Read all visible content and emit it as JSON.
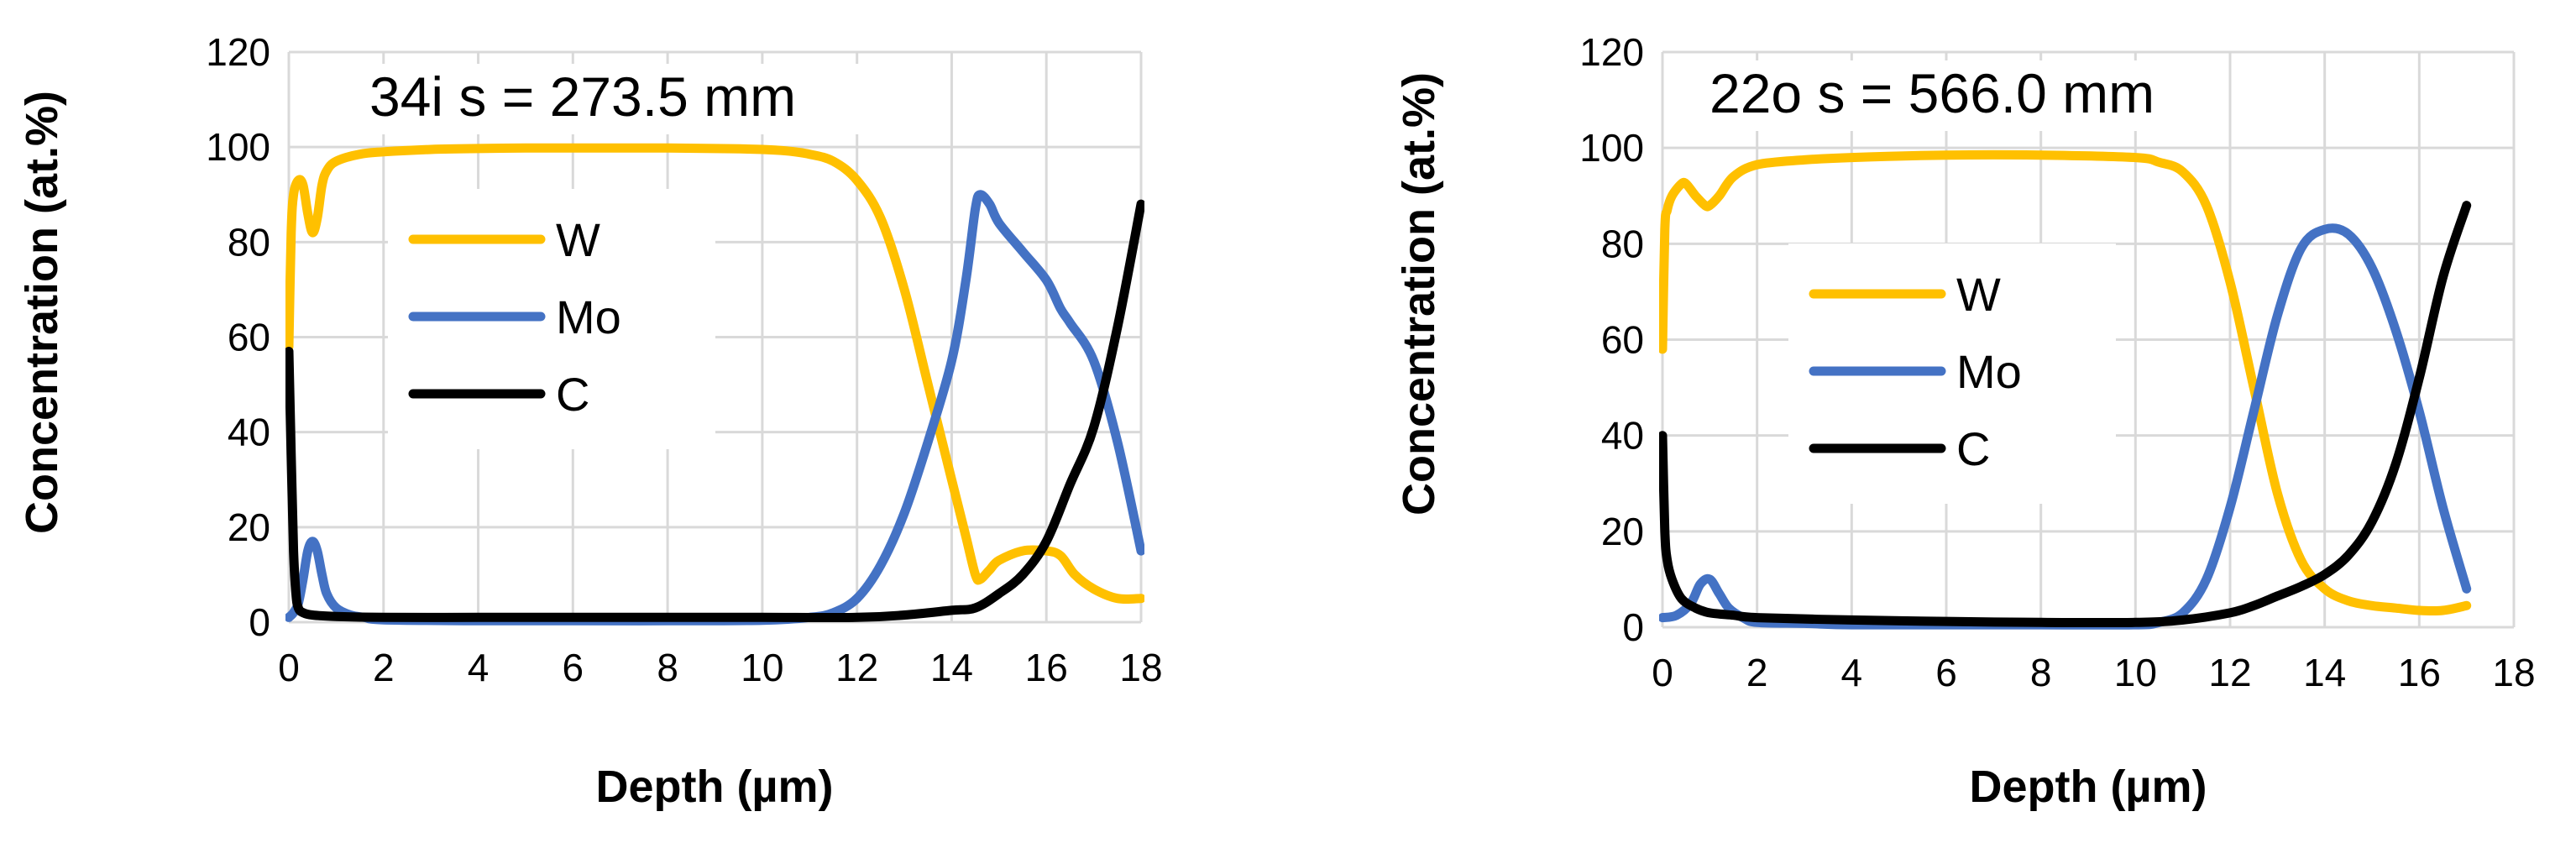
{
  "colors": {
    "W": "#FFC000",
    "Mo": "#4472C4",
    "C": "#000000",
    "grid": "#d9d9d9",
    "background": "#ffffff"
  },
  "chart_data": [
    {
      "type": "line",
      "title": "34i s = 273.5 mm",
      "xlabel": "Depth (µm)",
      "ylabel": "Concentration (at.%)",
      "xlim": [
        0,
        18
      ],
      "ylim": [
        0,
        120
      ],
      "xticks": [
        "0",
        "2",
        "4",
        "6",
        "8",
        "10",
        "12",
        "14",
        "16",
        "18"
      ],
      "yticks": [
        "0",
        "20",
        "40",
        "60",
        "80",
        "100",
        "120"
      ],
      "grid": true,
      "legend": "center-left",
      "series": [
        {
          "name": "W",
          "color": "#FFC000",
          "x": [
            0,
            0.05,
            0.1,
            0.2,
            0.3,
            0.4,
            0.5,
            0.6,
            0.7,
            0.8,
            1.0,
            1.5,
            2,
            3,
            4,
            5,
            6,
            7,
            8,
            9,
            10,
            10.5,
            11,
            11.5,
            12,
            12.5,
            13,
            13.5,
            14,
            14.3,
            14.5,
            14.6,
            14.8,
            15,
            15.5,
            16,
            16.3,
            16.6,
            17,
            17.5,
            18
          ],
          "y": [
            58,
            82,
            90,
            93,
            92,
            86,
            82,
            85,
            92,
            95,
            97,
            98.5,
            99,
            99.5,
            99.7,
            99.8,
            99.8,
            99.8,
            99.8,
            99.7,
            99.5,
            99.2,
            98.5,
            97,
            93,
            85,
            70,
            50,
            30,
            18,
            10,
            9,
            11,
            13,
            15,
            15,
            14,
            10,
            7,
            5,
            5
          ]
        },
        {
          "name": "Mo",
          "color": "#4472C4",
          "x": [
            0,
            0.1,
            0.2,
            0.3,
            0.4,
            0.5,
            0.6,
            0.7,
            0.8,
            1.0,
            1.3,
            1.6,
            2,
            4,
            6,
            8,
            10,
            11,
            11.5,
            12,
            12.5,
            13,
            13.5,
            14,
            14.3,
            14.5,
            14.6,
            14.8,
            15,
            15.5,
            16,
            16.3,
            16.5,
            17,
            17.5,
            18
          ],
          "y": [
            1,
            2,
            4,
            9,
            15,
            17,
            15,
            10,
            6,
            3,
            1.5,
            1,
            0.5,
            0.3,
            0.3,
            0.3,
            0.4,
            1,
            2,
            5,
            12,
            23,
            38,
            55,
            72,
            87,
            90,
            88,
            84,
            78,
            72,
            66,
            63,
            55,
            38,
            15
          ]
        },
        {
          "name": "C",
          "color": "#000000",
          "x": [
            0,
            0.05,
            0.1,
            0.15,
            0.2,
            0.3,
            0.5,
            1,
            2,
            4,
            6,
            8,
            10,
            12,
            13,
            14,
            14.5,
            15,
            15.5,
            16,
            16.5,
            17,
            17.5,
            18
          ],
          "y": [
            57,
            35,
            15,
            6,
            3,
            2,
            1.5,
            1.2,
            1,
            1,
            1,
            1,
            1,
            1,
            1.5,
            2.5,
            3,
            6,
            10,
            17,
            29,
            41,
            62,
            88
          ]
        }
      ]
    },
    {
      "type": "line",
      "title": "22o s = 566.0 mm",
      "xlabel": "Depth (µm)",
      "ylabel": "Concentration (at.%)",
      "xlim": [
        0,
        18
      ],
      "ylim": [
        0,
        120
      ],
      "xticks": [
        "0",
        "2",
        "4",
        "6",
        "8",
        "10",
        "12",
        "14",
        "16",
        "18"
      ],
      "yticks": [
        "0",
        "20",
        "40",
        "60",
        "80",
        "100",
        "120"
      ],
      "grid": true,
      "legend": "center-left",
      "series": [
        {
          "name": "W",
          "color": "#FFC000",
          "x": [
            0,
            0.05,
            0.1,
            0.2,
            0.4,
            0.5,
            0.7,
            0.9,
            1.0,
            1.2,
            1.5,
            2,
            3,
            4,
            6,
            8,
            10,
            10.5,
            11,
            11.5,
            12,
            12.5,
            13,
            13.5,
            14,
            14.5,
            15,
            15.5,
            16,
            16.5,
            17
          ],
          "y": [
            58,
            83,
            87,
            90,
            92.5,
            92.5,
            90,
            88,
            88,
            90,
            94,
            96.5,
            97.5,
            98,
            98.5,
            98.5,
            98,
            97,
            95,
            88,
            72,
            50,
            28,
            14,
            8,
            5.5,
            4.5,
            4,
            3.5,
            3.5,
            4.5
          ]
        },
        {
          "name": "Mo",
          "color": "#4472C4",
          "x": [
            0,
            0.3,
            0.6,
            0.8,
            1.0,
            1.2,
            1.4,
            1.7,
            2,
            3,
            4,
            6,
            8,
            10,
            10.5,
            11,
            11.5,
            12,
            12.5,
            13,
            13.5,
            14,
            14.5,
            15,
            15.5,
            16,
            16.5,
            17
          ],
          "y": [
            2,
            2.5,
            5,
            9,
            10,
            7,
            4,
            2,
            1,
            0.8,
            0.5,
            0.5,
            0.5,
            0.5,
            1,
            3,
            10,
            25,
            45,
            65,
            79,
            83,
            82,
            75,
            62,
            45,
            25,
            8
          ]
        },
        {
          "name": "C",
          "color": "#000000",
          "x": [
            0,
            0.05,
            0.1,
            0.2,
            0.4,
            0.7,
            1,
            1.5,
            2,
            4,
            6,
            8,
            10,
            11,
            12,
            12.5,
            13,
            13.5,
            14,
            14.5,
            15,
            15.5,
            16,
            16.5,
            17
          ],
          "y": [
            40,
            20,
            14,
            10,
            6,
            4,
            3,
            2.5,
            2,
            1.5,
            1.2,
            1,
            1,
            1.5,
            3,
            4.5,
            6.5,
            8.5,
            11,
            15,
            22,
            34,
            52,
            73,
            88
          ]
        }
      ]
    }
  ]
}
